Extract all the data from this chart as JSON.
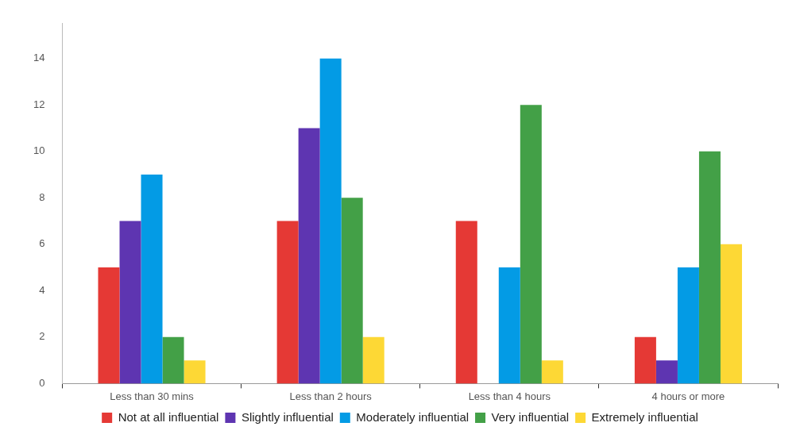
{
  "chart_data": {
    "type": "bar",
    "categories": [
      "Less than 30 mins",
      "Less than 2 hours",
      "Less than 4 hours",
      "4 hours or more"
    ],
    "series": [
      {
        "name": "Not at all influential",
        "color": "#e53935",
        "values": [
          5,
          7,
          7,
          2
        ]
      },
      {
        "name": "Slightly influential",
        "color": "#5e35b1",
        "values": [
          7,
          11,
          0,
          1
        ]
      },
      {
        "name": "Moderately influential",
        "color": "#039be5",
        "values": [
          9,
          14,
          5,
          5
        ]
      },
      {
        "name": "Very influential",
        "color": "#43a047",
        "values": [
          2,
          8,
          12,
          10
        ]
      },
      {
        "name": "Extremely influential",
        "color": "#fdd835",
        "values": [
          1,
          2,
          1,
          6
        ]
      }
    ],
    "ylim": [
      0,
      15.5
    ],
    "yticks": [
      0,
      2,
      4,
      6,
      8,
      10,
      12,
      14
    ],
    "grid": false,
    "legend": "bottom"
  }
}
